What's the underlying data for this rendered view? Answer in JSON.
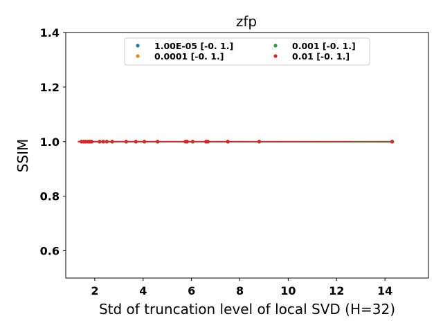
{
  "chart_data": {
    "type": "scatter",
    "title": "zfp",
    "xlabel": "Std of truncation level of local SVD (H=32)",
    "ylabel": "SSIM",
    "xlim": [
      0.8,
      15.8
    ],
    "ylim": [
      0.5,
      1.4
    ],
    "xticks": [
      "2",
      "4",
      "6",
      "8",
      "10",
      "12",
      "14"
    ],
    "xtick_values": [
      2,
      4,
      6,
      8,
      10,
      12,
      14
    ],
    "yticks": [
      "0.6",
      "0.8",
      "1.0",
      "1.2",
      "1.4"
    ],
    "ytick_values": [
      0.6,
      0.8,
      1.0,
      1.2,
      1.4
    ],
    "grid": false,
    "legend_position": "top-center",
    "x": [
      1.45,
      1.55,
      1.62,
      1.72,
      1.8,
      1.87,
      2.2,
      2.35,
      2.5,
      2.72,
      3.3,
      3.7,
      4.05,
      4.6,
      5.75,
      5.82,
      6.05,
      6.6,
      6.68,
      7.5,
      8.8,
      14.3
    ],
    "series": [
      {
        "name": "1.00E-05 [-0.  1.]",
        "color": "#1f77b4",
        "values": [
          1.0,
          1.0,
          1.0,
          1.0,
          1.0,
          1.0,
          1.0,
          1.0,
          1.0,
          1.0,
          1.0,
          1.0,
          1.0,
          1.0,
          1.0,
          1.0,
          1.0,
          1.0,
          1.0,
          1.0,
          1.0,
          1.0
        ],
        "fit": [
          1.0,
          1.0
        ]
      },
      {
        "name": "0.0001 [-0.  1.]",
        "color": "#ff7f0e",
        "values": [
          1.0,
          1.0,
          1.0,
          1.0,
          1.0,
          1.0,
          1.0,
          1.0,
          1.0,
          1.0,
          1.0,
          1.0,
          1.0,
          1.0,
          1.0,
          1.0,
          1.0,
          1.0,
          1.0,
          1.0,
          1.0,
          1.0
        ],
        "fit": [
          1.0,
          1.0
        ]
      },
      {
        "name": "0.001 [-0.  1.]",
        "color": "#2ca02c",
        "values": [
          1.0,
          1.0,
          1.0,
          1.0,
          1.0,
          1.0,
          1.0,
          1.0,
          1.0,
          1.0,
          1.0,
          1.0,
          1.0,
          1.0,
          1.0,
          1.0,
          1.0,
          1.0,
          1.0,
          1.0,
          1.0,
          1.0
        ],
        "fit": [
          1.0,
          1.0
        ]
      },
      {
        "name": "0.01 [-0.  1.]",
        "color": "#d62728",
        "values": [
          1.0,
          1.0,
          1.0,
          1.0,
          1.0,
          1.0,
          1.0,
          1.0,
          1.0,
          1.0,
          1.0,
          1.0,
          1.0,
          1.0,
          1.0,
          1.0,
          1.0,
          1.0,
          1.0,
          1.0,
          1.0,
          1.0
        ],
        "fit": [
          1.0,
          0.999
        ]
      }
    ]
  }
}
